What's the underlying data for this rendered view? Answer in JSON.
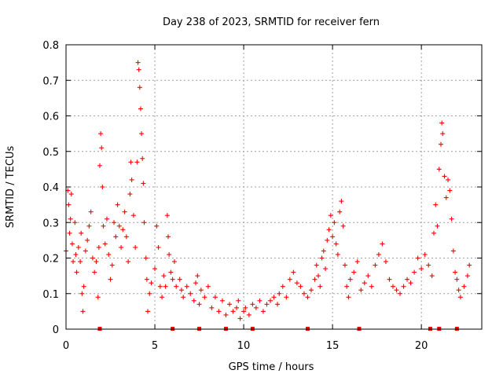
{
  "chart_data": {
    "type": "scatter",
    "title": "Day 238 of 2023, SRMTID for receiver fern",
    "xlabel": "GPS time / hours",
    "ylabel": "SRMTID / TECUs",
    "xlim": [
      0,
      23.4
    ],
    "ylim": [
      0,
      0.8
    ],
    "x_ticks": [
      0,
      5,
      10,
      15,
      20
    ],
    "x_tick_labels": [
      "0",
      "5",
      "10",
      "15",
      "20"
    ],
    "y_ticks": [
      0,
      0.1,
      0.2,
      0.3,
      0.4,
      0.5,
      0.6,
      0.7,
      0.8
    ],
    "y_tick_labels": [
      "0",
      "0.1",
      "0.2",
      "0.3",
      "0.4",
      "0.5",
      "0.6",
      "0.7",
      "0.8"
    ],
    "grid": true,
    "marker": "+",
    "color": "#ff0000",
    "series": [
      {
        "name": "SRMTID",
        "points": [
          [
            0.0,
            0.22
          ],
          [
            0.1,
            0.39
          ],
          [
            0.15,
            0.35
          ],
          [
            0.2,
            0.27
          ],
          [
            0.25,
            0.31
          ],
          [
            0.3,
            0.38
          ],
          [
            0.35,
            0.24
          ],
          [
            0.4,
            0.19
          ],
          [
            0.5,
            0.3
          ],
          [
            0.55,
            0.21
          ],
          [
            0.6,
            0.16
          ],
          [
            0.7,
            0.23
          ],
          [
            0.8,
            0.19
          ],
          [
            0.85,
            0.27
          ],
          [
            0.9,
            0.1
          ],
          [
            0.95,
            0.05
          ],
          [
            1.0,
            0.12
          ],
          [
            1.1,
            0.22
          ],
          [
            1.2,
            0.25
          ],
          [
            1.3,
            0.29
          ],
          [
            1.4,
            0.33
          ],
          [
            1.5,
            0.2
          ],
          [
            1.6,
            0.16
          ],
          [
            1.7,
            0.19
          ],
          [
            1.8,
            0.09
          ],
          [
            1.85,
            0.23
          ],
          [
            1.9,
            0.46
          ],
          [
            1.95,
            0.55
          ],
          [
            2.0,
            0.51
          ],
          [
            2.05,
            0.4
          ],
          [
            2.1,
            0.29
          ],
          [
            2.2,
            0.24
          ],
          [
            2.3,
            0.31
          ],
          [
            2.4,
            0.21
          ],
          [
            2.5,
            0.14
          ],
          [
            2.6,
            0.18
          ],
          [
            2.7,
            0.3
          ],
          [
            2.8,
            0.26
          ],
          [
            2.9,
            0.35
          ],
          [
            3.0,
            0.29
          ],
          [
            3.1,
            0.23
          ],
          [
            3.2,
            0.28
          ],
          [
            3.3,
            0.33
          ],
          [
            3.4,
            0.26
          ],
          [
            3.5,
            0.19
          ],
          [
            3.6,
            0.38
          ],
          [
            3.65,
            0.47
          ],
          [
            3.7,
            0.42
          ],
          [
            3.8,
            0.32
          ],
          [
            3.9,
            0.23
          ],
          [
            4.0,
            0.47
          ],
          [
            4.05,
            0.75
          ],
          [
            4.1,
            0.73
          ],
          [
            4.15,
            0.68
          ],
          [
            4.2,
            0.62
          ],
          [
            4.25,
            0.55
          ],
          [
            4.3,
            0.48
          ],
          [
            4.35,
            0.41
          ],
          [
            4.4,
            0.3
          ],
          [
            4.5,
            0.2
          ],
          [
            4.55,
            0.14
          ],
          [
            4.6,
            0.05
          ],
          [
            4.7,
            0.1
          ],
          [
            4.8,
            0.13
          ],
          [
            5.0,
            0.17
          ],
          [
            5.1,
            0.29
          ],
          [
            5.2,
            0.23
          ],
          [
            5.3,
            0.12
          ],
          [
            5.4,
            0.09
          ],
          [
            5.5,
            0.15
          ],
          [
            5.6,
            0.12
          ],
          [
            5.7,
            0.32
          ],
          [
            5.75,
            0.26
          ],
          [
            5.8,
            0.21
          ],
          [
            5.9,
            0.16
          ],
          [
            6.0,
            0.14
          ],
          [
            6.1,
            0.19
          ],
          [
            6.2,
            0.12
          ],
          [
            6.4,
            0.14
          ],
          [
            6.5,
            0.11
          ],
          [
            6.6,
            0.09
          ],
          [
            6.8,
            0.12
          ],
          [
            7.0,
            0.1
          ],
          [
            7.2,
            0.08
          ],
          [
            7.3,
            0.13
          ],
          [
            7.4,
            0.15
          ],
          [
            7.5,
            0.07
          ],
          [
            7.6,
            0.11
          ],
          [
            7.8,
            0.09
          ],
          [
            8.0,
            0.12
          ],
          [
            8.2,
            0.06
          ],
          [
            8.4,
            0.09
          ],
          [
            8.6,
            0.05
          ],
          [
            8.8,
            0.08
          ],
          [
            9.0,
            0.04
          ],
          [
            9.2,
            0.07
          ],
          [
            9.4,
            0.05
          ],
          [
            9.6,
            0.06
          ],
          [
            9.7,
            0.08
          ],
          [
            9.8,
            0.03
          ],
          [
            10.0,
            0.05
          ],
          [
            10.1,
            0.06
          ],
          [
            10.3,
            0.04
          ],
          [
            10.5,
            0.07
          ],
          [
            10.7,
            0.06
          ],
          [
            10.9,
            0.08
          ],
          [
            11.1,
            0.05
          ],
          [
            11.3,
            0.07
          ],
          [
            11.5,
            0.08
          ],
          [
            11.7,
            0.09
          ],
          [
            11.9,
            0.07
          ],
          [
            12.0,
            0.1
          ],
          [
            12.2,
            0.12
          ],
          [
            12.4,
            0.09
          ],
          [
            12.6,
            0.14
          ],
          [
            12.8,
            0.16
          ],
          [
            13.0,
            0.13
          ],
          [
            13.2,
            0.12
          ],
          [
            13.4,
            0.1
          ],
          [
            13.6,
            0.09
          ],
          [
            13.8,
            0.11
          ],
          [
            14.0,
            0.14
          ],
          [
            14.1,
            0.18
          ],
          [
            14.2,
            0.15
          ],
          [
            14.3,
            0.12
          ],
          [
            14.4,
            0.2
          ],
          [
            14.5,
            0.22
          ],
          [
            14.6,
            0.17
          ],
          [
            14.7,
            0.25
          ],
          [
            14.8,
            0.28
          ],
          [
            14.9,
            0.32
          ],
          [
            15.0,
            0.26
          ],
          [
            15.1,
            0.3
          ],
          [
            15.2,
            0.24
          ],
          [
            15.3,
            0.21
          ],
          [
            15.4,
            0.33
          ],
          [
            15.5,
            0.36
          ],
          [
            15.6,
            0.29
          ],
          [
            15.7,
            0.18
          ],
          [
            15.8,
            0.12
          ],
          [
            15.9,
            0.09
          ],
          [
            16.0,
            0.14
          ],
          [
            16.2,
            0.16
          ],
          [
            16.4,
            0.19
          ],
          [
            16.6,
            0.11
          ],
          [
            16.8,
            0.13
          ],
          [
            17.0,
            0.15
          ],
          [
            17.2,
            0.12
          ],
          [
            17.4,
            0.18
          ],
          [
            17.6,
            0.21
          ],
          [
            17.8,
            0.24
          ],
          [
            18.0,
            0.19
          ],
          [
            18.2,
            0.14
          ],
          [
            18.4,
            0.12
          ],
          [
            18.6,
            0.11
          ],
          [
            18.8,
            0.1
          ],
          [
            19.0,
            0.12
          ],
          [
            19.2,
            0.14
          ],
          [
            19.4,
            0.13
          ],
          [
            19.6,
            0.16
          ],
          [
            19.8,
            0.2
          ],
          [
            20.0,
            0.17
          ],
          [
            20.2,
            0.21
          ],
          [
            20.4,
            0.18
          ],
          [
            20.6,
            0.15
          ],
          [
            20.7,
            0.27
          ],
          [
            20.8,
            0.35
          ],
          [
            20.9,
            0.29
          ],
          [
            21.0,
            0.45
          ],
          [
            21.1,
            0.52
          ],
          [
            21.15,
            0.58
          ],
          [
            21.2,
            0.55
          ],
          [
            21.3,
            0.43
          ],
          [
            21.4,
            0.37
          ],
          [
            21.5,
            0.42
          ],
          [
            21.6,
            0.39
          ],
          [
            21.7,
            0.31
          ],
          [
            21.8,
            0.22
          ],
          [
            21.9,
            0.16
          ],
          [
            22.0,
            0.14
          ],
          [
            22.1,
            0.11
          ],
          [
            22.2,
            0.09
          ],
          [
            22.4,
            0.12
          ],
          [
            22.6,
            0.15
          ],
          [
            22.7,
            0.18
          ]
        ],
        "zero_x": [
          1.9,
          6.0,
          7.5,
          9.0,
          10.5,
          13.6,
          16.5,
          20.5,
          21.0,
          22.0
        ]
      }
    ]
  }
}
